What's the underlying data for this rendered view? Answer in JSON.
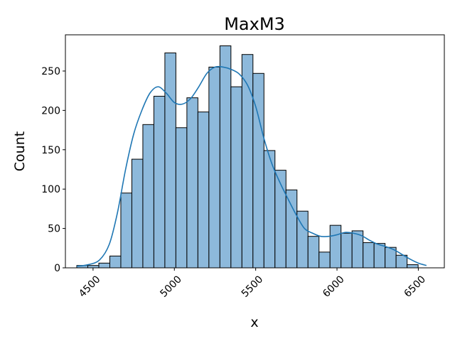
{
  "chart_data": {
    "type": "bar",
    "title": "MaxM3",
    "xlabel": "x",
    "ylabel": "Count",
    "xlim": [
      4330,
      6660
    ],
    "ylim": [
      0,
      296
    ],
    "x_ticks": [
      4500,
      5000,
      5500,
      6000,
      6500
    ],
    "y_ticks": [
      0,
      50,
      100,
      150,
      200,
      250
    ],
    "grid": false,
    "bin_edges": [
      4400,
      4467.7,
      4535.4,
      4603.1,
      4670.8,
      4738.5,
      4806.2,
      4873.9,
      4941.6,
      5009.3,
      5077.0,
      5144.7,
      5212.4,
      5280.1,
      5347.8,
      5415.5,
      5483.2,
      5550.9,
      5618.6,
      5686.3,
      5754.0,
      5821.7,
      5889.4,
      5957.1,
      6024.8,
      6092.5,
      6160.2,
      6227.9,
      6295.6,
      6363.3,
      6431.0,
      6498.7
    ],
    "values": [
      3,
      3,
      6,
      15,
      95,
      138,
      182,
      218,
      273,
      178,
      216,
      198,
      255,
      282,
      230,
      271,
      247,
      149,
      124,
      99,
      72,
      40,
      20,
      54,
      44,
      47,
      32,
      31,
      26,
      16,
      4
    ],
    "kde": {
      "x": [
        4400,
        4470,
        4540,
        4600,
        4650,
        4700,
        4750,
        4800,
        4850,
        4900,
        4950,
        5000,
        5050,
        5100,
        5150,
        5200,
        5250,
        5300,
        5350,
        5400,
        5450,
        5500,
        5550,
        5600,
        5650,
        5700,
        5750,
        5800,
        5850,
        5900,
        5950,
        6000,
        6050,
        6100,
        6150,
        6200,
        6250,
        6300,
        6350,
        6400,
        6450,
        6500,
        6550
      ],
      "y": [
        2,
        4,
        10,
        30,
        70,
        125,
        170,
        200,
        222,
        230,
        222,
        210,
        208,
        215,
        230,
        247,
        255,
        255,
        252,
        246,
        232,
        205,
        165,
        132,
        108,
        87,
        67,
        50,
        44,
        40,
        40,
        42,
        45,
        44,
        41,
        35,
        30,
        27,
        23,
        17,
        11,
        6,
        3
      ]
    },
    "colors": {
      "bar_fill": "#8db9db",
      "bar_edge": "#000000",
      "kde_line": "#1f77b4"
    }
  }
}
